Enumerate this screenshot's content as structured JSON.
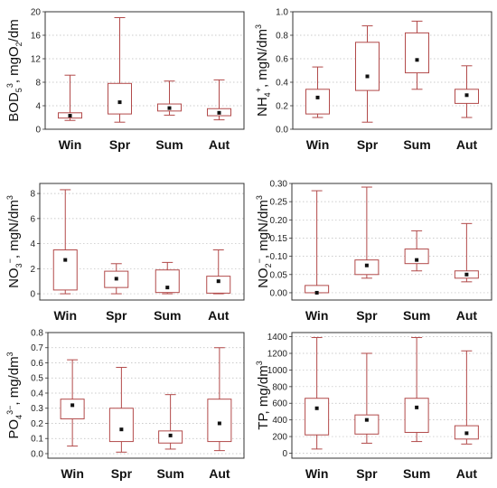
{
  "colors": {
    "box": "#b24a4a",
    "mean": "#111111",
    "axis": "#333333",
    "grid": "#bbbbbb"
  },
  "chart_data": [
    {
      "type": "box",
      "ylabel": {
        "main": "BOD",
        "sub": "5",
        "rest": ", mgO",
        "sub2": "2",
        "tail": "/dm",
        "sup": "3"
      },
      "categories": [
        "Win",
        "Spr",
        "Sum",
        "Aut"
      ],
      "yticks": [
        "0",
        "4",
        "8",
        "12",
        "16",
        "20"
      ],
      "ylim": [
        0,
        20
      ],
      "grid": true,
      "boxes": [
        {
          "min": 1.5,
          "q1": 1.9,
          "q3": 2.8,
          "max": 9.2,
          "mean": 2.3
        },
        {
          "min": 1.2,
          "q1": 2.6,
          "q3": 7.8,
          "max": 19.0,
          "mean": 4.6
        },
        {
          "min": 2.4,
          "q1": 3.1,
          "q3": 4.3,
          "max": 8.2,
          "mean": 3.6
        },
        {
          "min": 1.6,
          "q1": 2.3,
          "q3": 3.5,
          "max": 8.4,
          "mean": 2.8
        }
      ]
    },
    {
      "type": "box",
      "ylabel": {
        "main": "NH",
        "sub": "4",
        "sup": "+",
        "rest": ", mgN/dm",
        "sup2": "3"
      },
      "categories": [
        "Win",
        "Spr",
        "Sum",
        "Aut"
      ],
      "yticks": [
        "0.0",
        "0.2",
        "0.4",
        "0.6",
        "0.8",
        "1.0"
      ],
      "ylim": [
        0,
        1.0
      ],
      "grid": true,
      "boxes": [
        {
          "min": 0.1,
          "q1": 0.13,
          "q3": 0.34,
          "max": 0.53,
          "mean": 0.27
        },
        {
          "min": 0.06,
          "q1": 0.33,
          "q3": 0.74,
          "max": 0.88,
          "mean": 0.45
        },
        {
          "min": 0.34,
          "q1": 0.48,
          "q3": 0.82,
          "max": 0.92,
          "mean": 0.59
        },
        {
          "min": 0.1,
          "q1": 0.22,
          "q3": 0.34,
          "max": 0.54,
          "mean": 0.29
        }
      ]
    },
    {
      "type": "box",
      "ylabel": {
        "main": "NO",
        "sub": "3",
        "sup": "−",
        "rest": ", mgN/dm",
        "sup2": "3"
      },
      "categories": [
        "Win",
        "Spr",
        "Sum",
        "Aut"
      ],
      "yticks": [
        "0",
        "2",
        "4",
        "6",
        "8"
      ],
      "ylim": [
        -0.5,
        8.8
      ],
      "grid": true,
      "boxes": [
        {
          "min": 0.0,
          "q1": 0.3,
          "q3": 3.5,
          "max": 8.3,
          "mean": 2.7
        },
        {
          "min": 0.0,
          "q1": 0.5,
          "q3": 1.8,
          "max": 2.4,
          "mean": 1.2
        },
        {
          "min": 0.0,
          "q1": 0.1,
          "q3": 1.9,
          "max": 2.5,
          "mean": 0.5
        },
        {
          "min": 0.0,
          "q1": 0.05,
          "q3": 1.4,
          "max": 3.5,
          "mean": 1.0
        }
      ]
    },
    {
      "type": "box",
      "ylabel": {
        "main": "NO",
        "sub": "2",
        "sup": "−",
        "rest": ", mgN/dm",
        "sup2": "3"
      },
      "categories": [
        "Win",
        "Spr",
        "Sum",
        "Aut"
      ],
      "yticks": [
        "0.00",
        "0.05",
        "0.10",
        "0.15",
        "0.20",
        "0.25",
        "0.30"
      ],
      "ylim": [
        -0.02,
        0.3
      ],
      "grid": true,
      "boxes": [
        {
          "min": 0.0,
          "q1": 0.0,
          "q3": 0.02,
          "max": 0.28,
          "mean": 0.0
        },
        {
          "min": 0.04,
          "q1": 0.05,
          "q3": 0.09,
          "max": 0.29,
          "mean": 0.075
        },
        {
          "min": 0.06,
          "q1": 0.08,
          "q3": 0.12,
          "max": 0.17,
          "mean": 0.09
        },
        {
          "min": 0.03,
          "q1": 0.04,
          "q3": 0.06,
          "max": 0.19,
          "mean": 0.05
        }
      ]
    },
    {
      "type": "box",
      "ylabel": {
        "main": "PO",
        "sub": "4",
        "sup": "3−",
        "rest": ", mg/dm",
        "sup2": "3"
      },
      "categories": [
        "Win",
        "Spr",
        "Sum",
        "Aut"
      ],
      "yticks": [
        "0.0",
        "0.1",
        "0.2",
        "0.3",
        "0.4",
        "0.5",
        "0.6",
        "0.7",
        "0.8"
      ],
      "ylim": [
        -0.03,
        0.8
      ],
      "grid": true,
      "boxes": [
        {
          "min": 0.05,
          "q1": 0.23,
          "q3": 0.36,
          "max": 0.62,
          "mean": 0.32
        },
        {
          "min": 0.01,
          "q1": 0.08,
          "q3": 0.3,
          "max": 0.57,
          "mean": 0.16
        },
        {
          "min": 0.03,
          "q1": 0.07,
          "q3": 0.15,
          "max": 0.39,
          "mean": 0.12
        },
        {
          "min": 0.02,
          "q1": 0.08,
          "q3": 0.36,
          "max": 0.7,
          "mean": 0.2
        }
      ]
    },
    {
      "type": "box",
      "ylabel": {
        "main": "TP",
        "rest": ", mg/dm",
        "sup2": "3"
      },
      "categories": [
        "Win",
        "Spr",
        "Sum",
        "Aut"
      ],
      "yticks": [
        "0",
        "200",
        "400",
        "600",
        "800",
        "1000",
        "1200",
        "1400"
      ],
      "ylim": [
        -60,
        1450
      ],
      "grid": true,
      "boxes": [
        {
          "min": 50,
          "q1": 220,
          "q3": 660,
          "max": 1390,
          "mean": 540
        },
        {
          "min": 120,
          "q1": 230,
          "q3": 460,
          "max": 1200,
          "mean": 400
        },
        {
          "min": 140,
          "q1": 250,
          "q3": 660,
          "max": 1390,
          "mean": 550
        },
        {
          "min": 110,
          "q1": 170,
          "q3": 330,
          "max": 1230,
          "mean": 240
        }
      ]
    }
  ]
}
